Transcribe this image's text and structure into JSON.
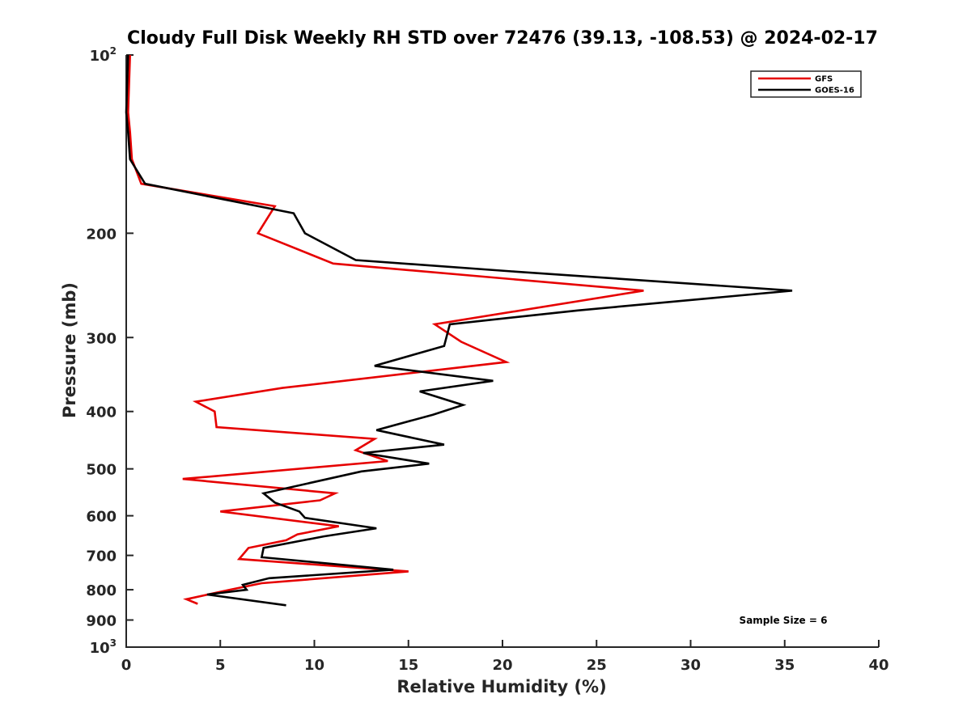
{
  "chart_data": {
    "type": "line",
    "title": "Cloudy Full Disk Weekly RH STD over 72476 (39.13, -108.53) @ 2024-02-17",
    "xlabel": "Relative Humidity (%)",
    "ylabel": "Pressure (mb)",
    "xlim": [
      0,
      40
    ],
    "ylim": [
      100,
      1000
    ],
    "yscale": "log",
    "y_reversed": true,
    "x_ticks": [
      0,
      5,
      10,
      15,
      20,
      25,
      30,
      35,
      40
    ],
    "y_ticks": [
      {
        "value": 100,
        "label": "10",
        "sup": "2"
      },
      {
        "value": 200,
        "label": "200"
      },
      {
        "value": 300,
        "label": "300"
      },
      {
        "value": 400,
        "label": "400"
      },
      {
        "value": 500,
        "label": "500"
      },
      {
        "value": 600,
        "label": "600"
      },
      {
        "value": 700,
        "label": "700"
      },
      {
        "value": 800,
        "label": "800"
      },
      {
        "value": 900,
        "label": "900"
      },
      {
        "value": 1000,
        "label": "10",
        "sup": "3"
      }
    ],
    "grid": false,
    "legend_position": "top-right",
    "annotation": "Sample Size = 6",
    "series": [
      {
        "name": "GFS",
        "color": "#e60000",
        "points": [
          [
            0.2,
            100
          ],
          [
            0.1,
            125
          ],
          [
            0.2,
            135
          ],
          [
            0.3,
            150
          ],
          [
            0.8,
            165
          ],
          [
            7.9,
            180
          ],
          [
            7.0,
            200
          ],
          [
            11.0,
            225
          ],
          [
            27.5,
            250
          ],
          [
            16.4,
            285
          ],
          [
            17.8,
            305
          ],
          [
            20.2,
            330
          ],
          [
            8.3,
            365
          ],
          [
            3.7,
            385
          ],
          [
            4.7,
            400
          ],
          [
            4.8,
            425
          ],
          [
            13.2,
            445
          ],
          [
            12.2,
            465
          ],
          [
            13.9,
            485
          ],
          [
            3.0,
            520
          ],
          [
            11.1,
            550
          ],
          [
            10.3,
            565
          ],
          [
            5.0,
            590
          ],
          [
            11.3,
            625
          ],
          [
            9.1,
            645
          ],
          [
            8.5,
            660
          ],
          [
            6.5,
            680
          ],
          [
            6.0,
            710
          ],
          [
            15.0,
            745
          ],
          [
            7.2,
            780
          ],
          [
            5.5,
            800
          ],
          [
            3.2,
            830
          ],
          [
            3.8,
            845
          ]
        ]
      },
      {
        "name": "GOES-16",
        "color": "#000000",
        "points": [
          [
            0.1,
            100
          ],
          [
            0.0,
            125
          ],
          [
            0.1,
            135
          ],
          [
            0.2,
            150
          ],
          [
            1.0,
            165
          ],
          [
            8.9,
            185
          ],
          [
            9.5,
            200
          ],
          [
            12.2,
            222
          ],
          [
            20.5,
            232
          ],
          [
            35.4,
            250
          ],
          [
            24.0,
            270
          ],
          [
            17.2,
            285
          ],
          [
            16.9,
            310
          ],
          [
            13.2,
            335
          ],
          [
            19.5,
            355
          ],
          [
            15.6,
            370
          ],
          [
            17.9,
            390
          ],
          [
            16.3,
            405
          ],
          [
            13.3,
            430
          ],
          [
            16.9,
            455
          ],
          [
            12.6,
            470
          ],
          [
            16.1,
            490
          ],
          [
            12.5,
            505
          ],
          [
            7.3,
            550
          ],
          [
            7.9,
            570
          ],
          [
            9.2,
            590
          ],
          [
            9.5,
            605
          ],
          [
            13.3,
            630
          ],
          [
            10.5,
            650
          ],
          [
            7.3,
            680
          ],
          [
            7.2,
            705
          ],
          [
            14.2,
            740
          ],
          [
            7.6,
            765
          ],
          [
            6.2,
            785
          ],
          [
            6.4,
            800
          ],
          [
            4.3,
            815
          ],
          [
            8.5,
            850
          ]
        ]
      }
    ]
  }
}
